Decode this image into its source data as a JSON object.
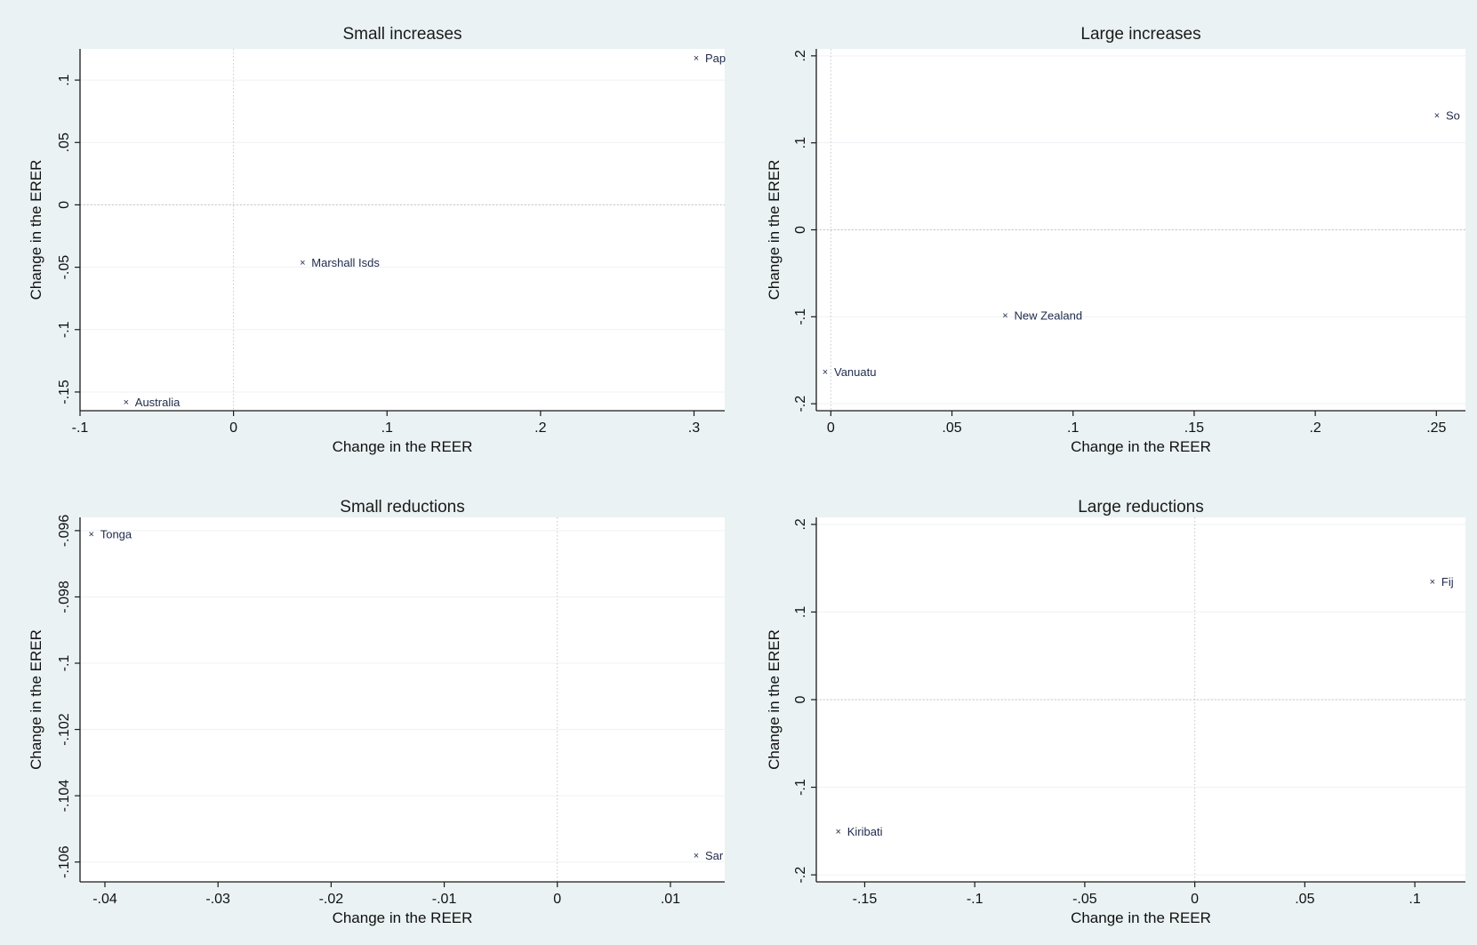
{
  "figure": {
    "background": "#eaf2f3",
    "plot_background": "#ffffff"
  },
  "chart_data": [
    {
      "type": "scatter",
      "title": "Small increases",
      "xlabel": "Change in the REER",
      "ylabel": "Change in the ERER",
      "xlim": [
        -0.1,
        0.32
      ],
      "ylim": [
        -0.165,
        0.125
      ],
      "xticks": [
        -0.1,
        0,
        0.1,
        0.2,
        0.3
      ],
      "xtick_labels": [
        "-.1",
        "0",
        ".1",
        ".2",
        ".3"
      ],
      "yticks": [
        -0.15,
        -0.1,
        -0.05,
        0,
        0.05,
        0.1
      ],
      "ytick_labels": [
        "-.15",
        "-.1",
        "-.05",
        "0",
        ".05",
        ".1"
      ],
      "grid": true,
      "zero_lines": true,
      "points": [
        {
          "x": -0.07,
          "y": -0.158,
          "label": "Australia"
        },
        {
          "x": 0.045,
          "y": -0.046,
          "label": "Marshall Isds"
        },
        {
          "x": 0.31,
          "y": 0.118,
          "label": "Pap"
        }
      ]
    },
    {
      "type": "scatter",
      "title": "Large increases",
      "xlabel": "Change in the REER",
      "ylabel": "Change in the ERER",
      "xlim": [
        -0.006,
        0.262
      ],
      "ylim": [
        -0.208,
        0.208
      ],
      "xticks": [
        0,
        0.05,
        0.1,
        0.15,
        0.2,
        0.25
      ],
      "xtick_labels": [
        "0",
        ".05",
        ".1",
        ".15",
        ".2",
        ".25"
      ],
      "yticks": [
        -0.2,
        -0.1,
        0,
        0.1,
        0.2
      ],
      "ytick_labels": [
        "-.2",
        "-.1",
        "0",
        ".1",
        ".2"
      ],
      "grid": true,
      "zero_lines": true,
      "points": [
        {
          "x": -0.007,
          "y": -0.163,
          "label": "Vanuatu"
        },
        {
          "x": 0.072,
          "y": -0.098,
          "label": "New Zealand"
        },
        {
          "x": 0.255,
          "y": 0.132,
          "label": "So"
        }
      ]
    },
    {
      "type": "scatter",
      "title": "Small reductions",
      "xlabel": "Change in the REER",
      "ylabel": "Change in the ERER",
      "xlim": [
        -0.0422,
        0.0148
      ],
      "ylim": [
        -0.1066,
        -0.0956
      ],
      "xticks": [
        -0.04,
        -0.03,
        -0.02,
        -0.01,
        0,
        0.01
      ],
      "xtick_labels": [
        "-.04",
        "-.03",
        "-.02",
        "-.01",
        "0",
        ".01"
      ],
      "yticks": [
        -0.106,
        -0.104,
        -0.102,
        -0.1,
        -0.098,
        -0.096
      ],
      "ytick_labels": [
        "-.106",
        "-.104",
        "-.102",
        "-.1",
        "-.098",
        "-.096"
      ],
      "grid": true,
      "zero_lines": true,
      "points": [
        {
          "x": -0.0412,
          "y": -0.0961,
          "label": "Tonga"
        },
        {
          "x": 0.0133,
          "y": -0.1058,
          "label": "Sar"
        }
      ]
    },
    {
      "type": "scatter",
      "title": "Large reductions",
      "xlabel": "Change in the REER",
      "ylabel": "Change in the ERER",
      "xlim": [
        -0.172,
        0.123
      ],
      "ylim": [
        -0.208,
        0.208
      ],
      "xticks": [
        -0.15,
        -0.1,
        -0.05,
        0,
        0.05,
        0.1
      ],
      "xtick_labels": [
        "-.15",
        "-.1",
        "-.05",
        "0",
        ".05",
        ".1"
      ],
      "yticks": [
        -0.2,
        -0.1,
        0,
        0.1,
        0.2
      ],
      "ytick_labels": [
        "-.2",
        "-.1",
        "0",
        ".1",
        ".2"
      ],
      "grid": true,
      "zero_lines": true,
      "points": [
        {
          "x": -0.162,
          "y": -0.15,
          "label": "Kiribati"
        },
        {
          "x": 0.108,
          "y": 0.135,
          "label": "Fij"
        }
      ]
    }
  ]
}
